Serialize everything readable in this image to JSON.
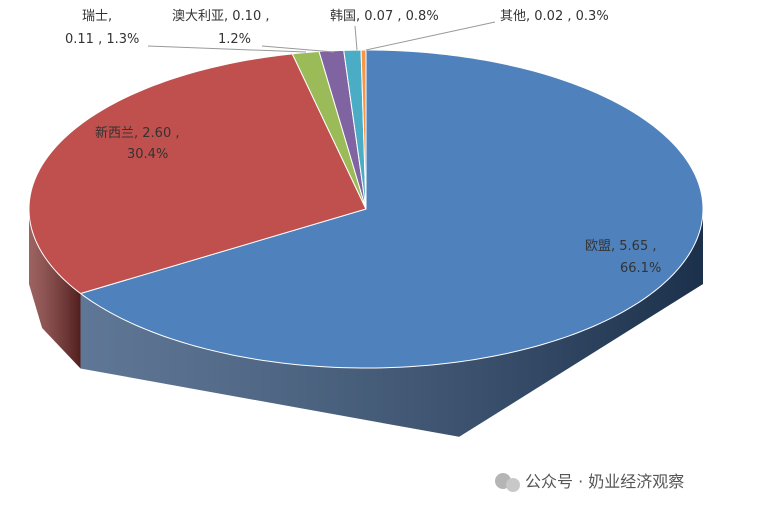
{
  "chart_data": {
    "type": "pie3d",
    "categories": [
      "欧盟",
      "新西兰",
      "瑞士",
      "澳大利亚",
      "韩国",
      "其他"
    ],
    "values": [
      5.65,
      2.6,
      0.11,
      0.1,
      0.07,
      0.02
    ],
    "value_labels": [
      "5.65",
      "2.60",
      "0.11",
      "0.10",
      "0.07",
      "0.02"
    ],
    "percents": [
      66.1,
      30.4,
      1.3,
      1.2,
      0.8,
      0.3
    ],
    "percent_labels": [
      "66.1%",
      "30.4%",
      "1.3%",
      "1.2%",
      "0.8%",
      "0.3%"
    ],
    "colors": [
      "#4f81bd",
      "#c0504d",
      "#9bbb59",
      "#8064a2",
      "#4bacc6",
      "#f79646"
    ],
    "side_colors": [
      "#2a4a73",
      "#7d2f2d",
      "#5f7a30",
      "#4d3a66",
      "#2a7085",
      "#a85f20"
    ]
  },
  "watermark": "公众号 · 奶业经济观察"
}
